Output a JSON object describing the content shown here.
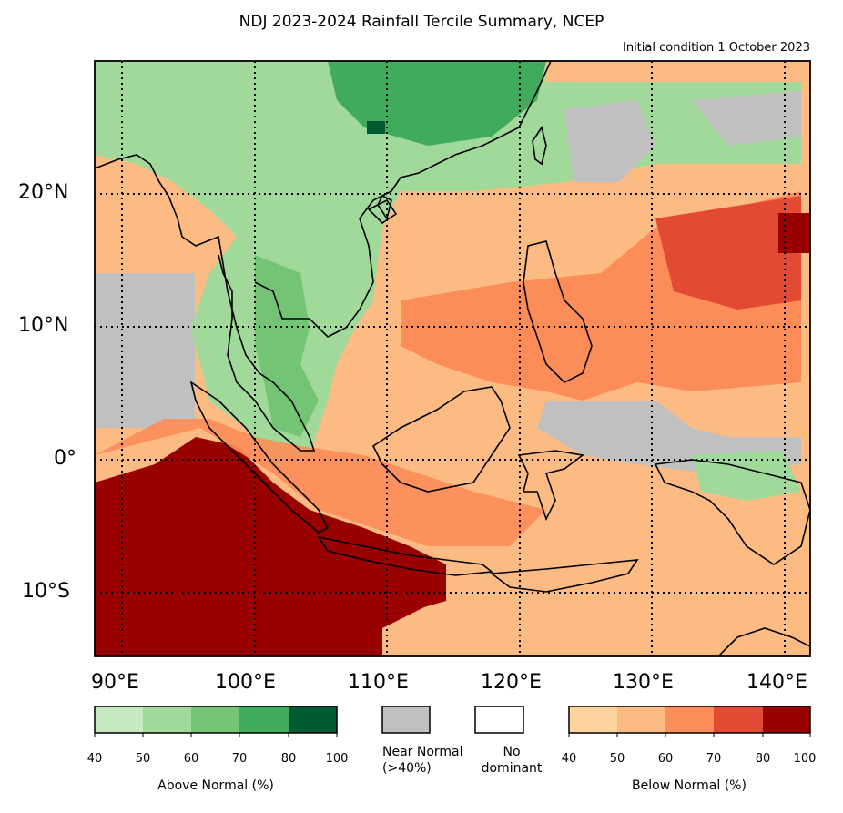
{
  "title": "NDJ 2023-2024 Rainfall Tercile Summary, NCEP",
  "subtitle": "Initial condition 1 October 2023",
  "lat_labels": [
    "20°N",
    "10°N",
    "0°",
    "10°S"
  ],
  "lon_labels": [
    "90°E",
    "100°E",
    "110°E",
    "120°E",
    "130°E",
    "140°E"
  ],
  "map_extent": {
    "lon": [
      88,
      142
    ],
    "lat": [
      -15,
      30
    ]
  },
  "legend": {
    "above": {
      "title": "Above Normal (%)",
      "ticks": [
        "40",
        "50",
        "60",
        "70",
        "80",
        "100"
      ],
      "colors": [
        "#c7e9c0",
        "#a1d99b",
        "#74c476",
        "#41ab5d",
        "#005a32"
      ]
    },
    "near": {
      "title": "Near Normal\n(>40%)",
      "color": "#c0c0c0"
    },
    "none": {
      "title": "No\ndominant",
      "color": "#ffffff"
    },
    "below": {
      "title": "Below Normal (%)",
      "ticks": [
        "40",
        "50",
        "60",
        "70",
        "80",
        "100"
      ],
      "colors": [
        "#fdd49e",
        "#fdbb84",
        "#fc8d59",
        "#e34a33",
        "#990000"
      ]
    }
  }
}
